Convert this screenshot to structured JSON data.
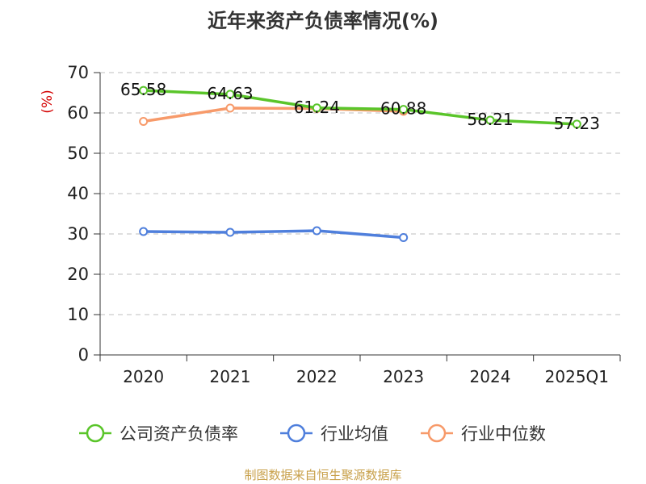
{
  "title": "近年来资产负债率情况(%)",
  "source": "制图数据来自恒生聚源数据库",
  "chart_data": {
    "type": "line",
    "title": "近年来资产负债率情况(%)",
    "ylabel": "(%)",
    "xlabel": "",
    "ylim": [
      0,
      70
    ],
    "yticks": [
      0,
      10,
      20,
      30,
      40,
      50,
      60,
      70
    ],
    "grid": true,
    "legend_position": "bottom",
    "categories": [
      "2020",
      "2021",
      "2022",
      "2023",
      "2024",
      "2025Q1"
    ],
    "series": [
      {
        "name": "公司资产负债率",
        "color": "#5ac52a",
        "values": [
          65.58,
          64.63,
          61.24,
          60.88,
          58.21,
          57.23
        ],
        "labels": [
          "65.58",
          "64.63",
          "61.24",
          "60.88",
          "58.21",
          "57.23"
        ]
      },
      {
        "name": "行业均值",
        "color": "#4f7fdc",
        "values": [
          30.6,
          30.4,
          30.8,
          29.1,
          null,
          null
        ]
      },
      {
        "name": "行业中位数",
        "color": "#f79a6a",
        "values": [
          57.9,
          61.2,
          61.1,
          60.4,
          null,
          null
        ]
      }
    ]
  }
}
